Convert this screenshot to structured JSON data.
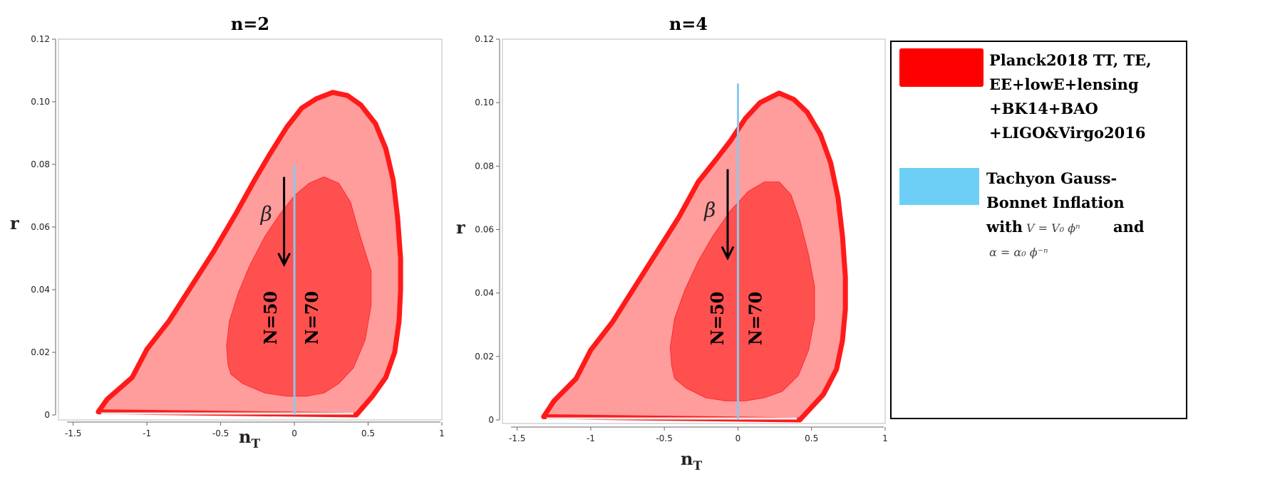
{
  "chart_data": [
    {
      "type": "line",
      "title": "n=2",
      "xlabel_main": "n",
      "xlabel_sub": "T",
      "ylabel": "r",
      "xlim": [
        -1.6,
        1.0
      ],
      "ylim": [
        0,
        0.12
      ],
      "xticks": [
        -1.5,
        -1,
        -0.5,
        0,
        0.5,
        1
      ],
      "xtick_labels": [
        "-1.5",
        "-1",
        "-0.5",
        "0",
        "0.5",
        "1"
      ],
      "yticks": [
        0,
        0.02,
        0.04,
        0.06,
        0.08,
        0.1,
        0.12
      ],
      "ytick_labels": [
        "0",
        "0.02",
        "0.04",
        "0.06",
        "0.08",
        "0.10",
        "0.12"
      ],
      "outer_contour": [
        [
          -1.33,
          0.001
        ],
        [
          -1.27,
          0.005
        ],
        [
          -1.1,
          0.012
        ],
        [
          -1.0,
          0.021
        ],
        [
          -0.85,
          0.03
        ],
        [
          -0.7,
          0.041
        ],
        [
          -0.55,
          0.052
        ],
        [
          -0.4,
          0.064
        ],
        [
          -0.27,
          0.075
        ],
        [
          -0.17,
          0.083
        ],
        [
          -0.05,
          0.092
        ],
        [
          0.05,
          0.098
        ],
        [
          0.15,
          0.101
        ],
        [
          0.26,
          0.103
        ],
        [
          0.36,
          0.102
        ],
        [
          0.45,
          0.099
        ],
        [
          0.55,
          0.093
        ],
        [
          0.62,
          0.085
        ],
        [
          0.67,
          0.075
        ],
        [
          0.7,
          0.063
        ],
        [
          0.72,
          0.05
        ],
        [
          0.72,
          0.04
        ],
        [
          0.71,
          0.03
        ],
        [
          0.68,
          0.02
        ],
        [
          0.62,
          0.012
        ],
        [
          0.53,
          0.006
        ],
        [
          0.42,
          0.0
        ]
      ],
      "inner_contour": [
        [
          -0.45,
          0.016
        ],
        [
          -0.46,
          0.022
        ],
        [
          -0.44,
          0.03
        ],
        [
          -0.38,
          0.039
        ],
        [
          -0.3,
          0.048
        ],
        [
          -0.2,
          0.057
        ],
        [
          -0.1,
          0.064
        ],
        [
          0.0,
          0.07
        ],
        [
          0.1,
          0.074
        ],
        [
          0.2,
          0.076
        ],
        [
          0.3,
          0.074
        ],
        [
          0.38,
          0.068
        ],
        [
          0.44,
          0.058
        ],
        [
          0.52,
          0.046
        ],
        [
          0.52,
          0.035
        ],
        [
          0.48,
          0.024
        ],
        [
          0.4,
          0.015
        ],
        [
          0.3,
          0.01
        ],
        [
          0.2,
          0.007
        ],
        [
          0.08,
          0.006
        ],
        [
          -0.05,
          0.006
        ],
        [
          -0.2,
          0.007
        ],
        [
          -0.35,
          0.01
        ],
        [
          -0.43,
          0.013
        ]
      ],
      "model_line": {
        "x": [
          0,
          0
        ],
        "y": [
          0.0,
          0.08
        ]
      },
      "arrow": {
        "from": [
          -0.07,
          0.076
        ],
        "to": [
          -0.07,
          0.048
        ]
      },
      "beta_pos": [
        -0.19,
        0.062
      ],
      "beta_label": "β",
      "label_N50": "N=50",
      "label_N70": "N=70",
      "label_N50_pos": [
        -0.12,
        0.031
      ],
      "label_N70_pos": [
        0.16,
        0.031
      ]
    },
    {
      "type": "line",
      "title": "n=4",
      "xlabel_main": "n",
      "xlabel_sub": "T",
      "ylabel": "r",
      "xlim": [
        -1.6,
        1.0
      ],
      "ylim": [
        0,
        0.12
      ],
      "xticks": [
        -1.5,
        -1,
        -0.5,
        0,
        0.5,
        1
      ],
      "xtick_labels": [
        "-1.5",
        "-1",
        "-0.5",
        "0",
        "0.5",
        "1"
      ],
      "yticks": [
        0,
        0.02,
        0.04,
        0.06,
        0.08,
        0.1,
        0.12
      ],
      "ytick_labels": [
        "0",
        "0.02",
        "0.04",
        "0.06",
        "0.08",
        "0.10",
        "0.12"
      ],
      "outer_contour": [
        [
          -1.32,
          0.001
        ],
        [
          -1.25,
          0.006
        ],
        [
          -1.1,
          0.013
        ],
        [
          -1.0,
          0.022
        ],
        [
          -0.85,
          0.031
        ],
        [
          -0.7,
          0.042
        ],
        [
          -0.55,
          0.053
        ],
        [
          -0.4,
          0.064
        ],
        [
          -0.27,
          0.075
        ],
        [
          -0.15,
          0.082
        ],
        [
          -0.05,
          0.088
        ],
        [
          0.05,
          0.095
        ],
        [
          0.15,
          0.1
        ],
        [
          0.28,
          0.103
        ],
        [
          0.38,
          0.101
        ],
        [
          0.47,
          0.097
        ],
        [
          0.56,
          0.09
        ],
        [
          0.63,
          0.081
        ],
        [
          0.68,
          0.07
        ],
        [
          0.71,
          0.058
        ],
        [
          0.73,
          0.045
        ],
        [
          0.73,
          0.035
        ],
        [
          0.71,
          0.025
        ],
        [
          0.67,
          0.016
        ],
        [
          0.58,
          0.008
        ],
        [
          0.42,
          0.0
        ]
      ],
      "inner_contour": [
        [
          -0.45,
          0.017
        ],
        [
          -0.46,
          0.023
        ],
        [
          -0.43,
          0.032
        ],
        [
          -0.36,
          0.041
        ],
        [
          -0.27,
          0.05
        ],
        [
          -0.17,
          0.058
        ],
        [
          -0.05,
          0.066
        ],
        [
          0.07,
          0.072
        ],
        [
          0.18,
          0.075
        ],
        [
          0.28,
          0.075
        ],
        [
          0.36,
          0.071
        ],
        [
          0.42,
          0.063
        ],
        [
          0.48,
          0.052
        ],
        [
          0.52,
          0.042
        ],
        [
          0.52,
          0.032
        ],
        [
          0.48,
          0.022
        ],
        [
          0.41,
          0.014
        ],
        [
          0.3,
          0.009
        ],
        [
          0.18,
          0.007
        ],
        [
          0.05,
          0.006
        ],
        [
          -0.08,
          0.006
        ],
        [
          -0.22,
          0.007
        ],
        [
          -0.35,
          0.01
        ],
        [
          -0.43,
          0.013
        ]
      ],
      "model_line": {
        "x": [
          0,
          0
        ],
        "y": [
          0.0,
          0.106
        ]
      },
      "arrow": {
        "from": [
          -0.07,
          0.079
        ],
        "to": [
          -0.07,
          0.051
        ]
      },
      "beta_pos": [
        -0.19,
        0.064
      ],
      "beta_label": "β",
      "label_N50": "N=50",
      "label_N70": "N=70",
      "label_N50_pos": [
        -0.1,
        0.032
      ],
      "label_N70_pos": [
        0.16,
        0.032
      ]
    }
  ],
  "legend": {
    "entries": [
      {
        "color": "#ff0000",
        "lines": [
          "Planck2018 TT, TE,",
          "EE+lowE+lensing",
          "+BK14+BAO",
          "+LIGO&Virgo2016"
        ]
      },
      {
        "color": "#6dcff6",
        "lines": [
          "Tachyon Gauss-",
          "Bonnet Inflation"
        ],
        "with_line": [
          "with",
          "V = V₀ ϕⁿ",
          "and"
        ],
        "alpha_line": "α = α₀ ϕ⁻ⁿ"
      }
    ]
  },
  "colors": {
    "outer_fill": "#ff9c9c",
    "outer_stroke": "#ff1a1a",
    "inner_fill": "#ff5050",
    "model_line": "#8cc8ec",
    "arrow": "#000000"
  }
}
